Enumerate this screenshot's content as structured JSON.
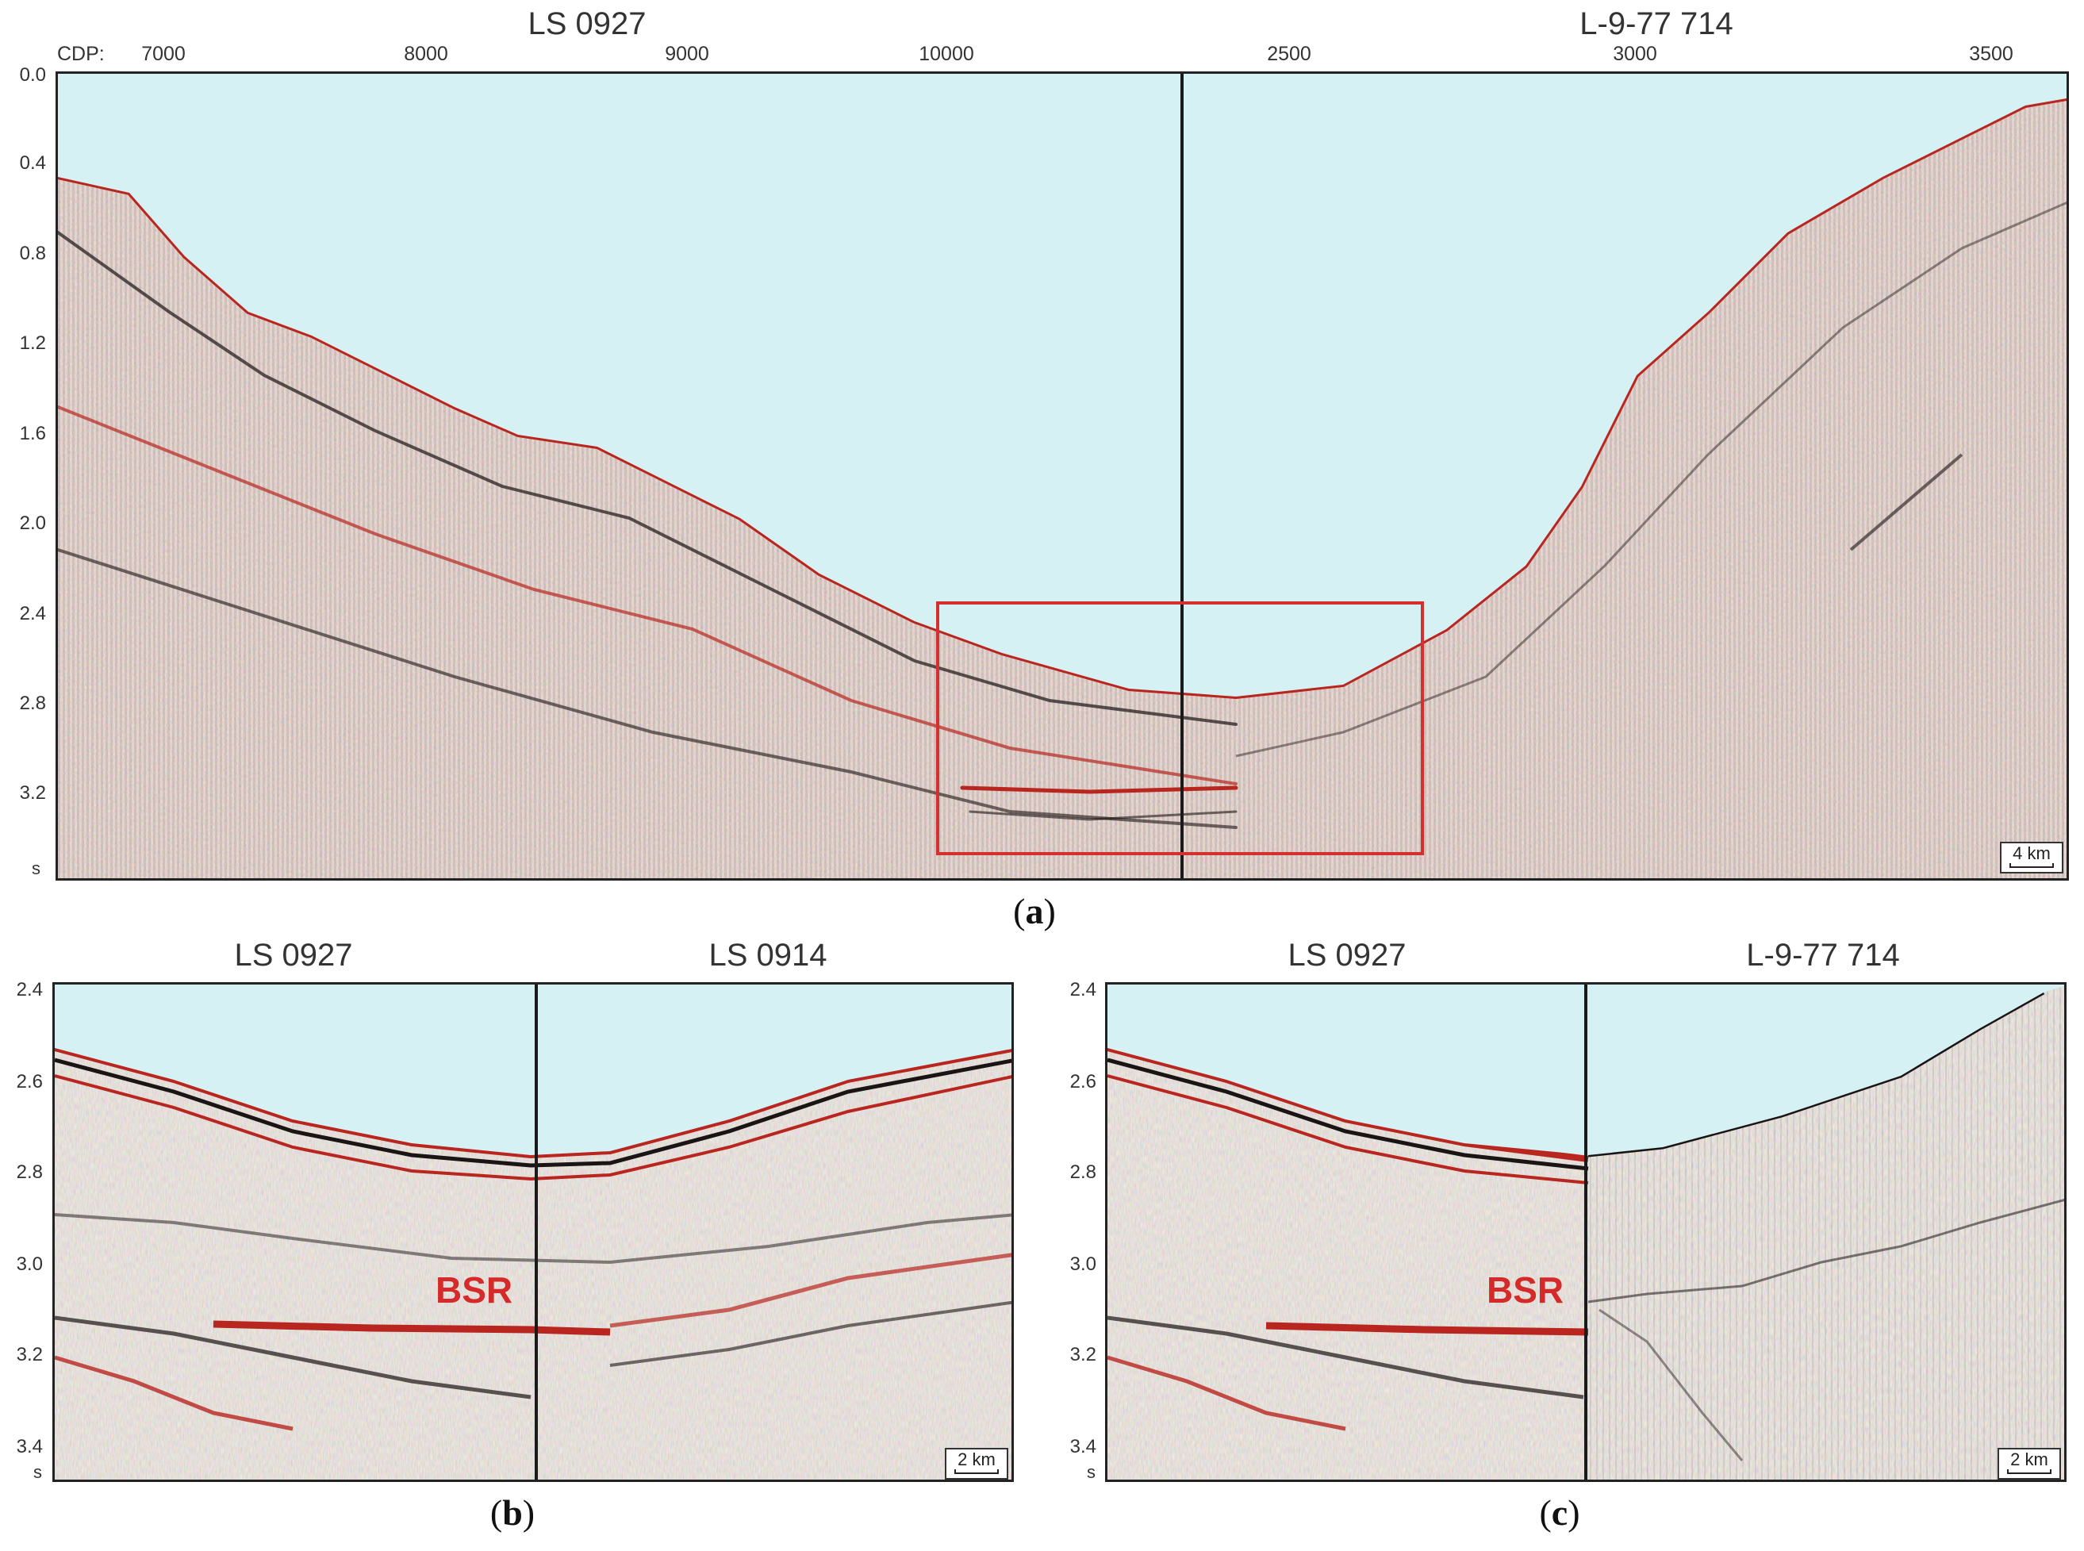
{
  "panel_a": {
    "title_left": "LS 0927",
    "title_right": "L-9-77 714",
    "cdp_label": "CDP:",
    "cdp_ticks_left": [
      "7000",
      "8000",
      "9000",
      "10000"
    ],
    "cdp_ticks_right": [
      "2500",
      "3000",
      "3500"
    ],
    "y_ticks": [
      "0.0",
      "0.4",
      "0.8",
      "1.2",
      "1.6",
      "2.0",
      "2.4",
      "2.8",
      "3.2"
    ],
    "y_unit": "s",
    "scale": "4 km",
    "caption_letter": "a"
  },
  "panel_b": {
    "title_left": "LS 0927",
    "title_right": "LS 0914",
    "y_ticks": [
      "2.4",
      "2.6",
      "2.8",
      "3.0",
      "3.2",
      "3.4"
    ],
    "y_unit": "s",
    "annotation": "BSR",
    "scale": "2 km",
    "caption_letter": "b"
  },
  "panel_c": {
    "title_left": "LS 0927",
    "title_right": "L-9-77 714",
    "y_ticks": [
      "2.4",
      "2.6",
      "2.8",
      "3.0",
      "3.2",
      "3.4"
    ],
    "y_unit": "s",
    "annotation": "BSR",
    "scale": "2 km",
    "caption_letter": "c"
  },
  "colors": {
    "water": "#d6f1f3",
    "reflector_red": "#b8261f",
    "reflector_black": "#1a1414",
    "highlight_box": "#d43030",
    "annotation_red": "#d42a2a"
  }
}
